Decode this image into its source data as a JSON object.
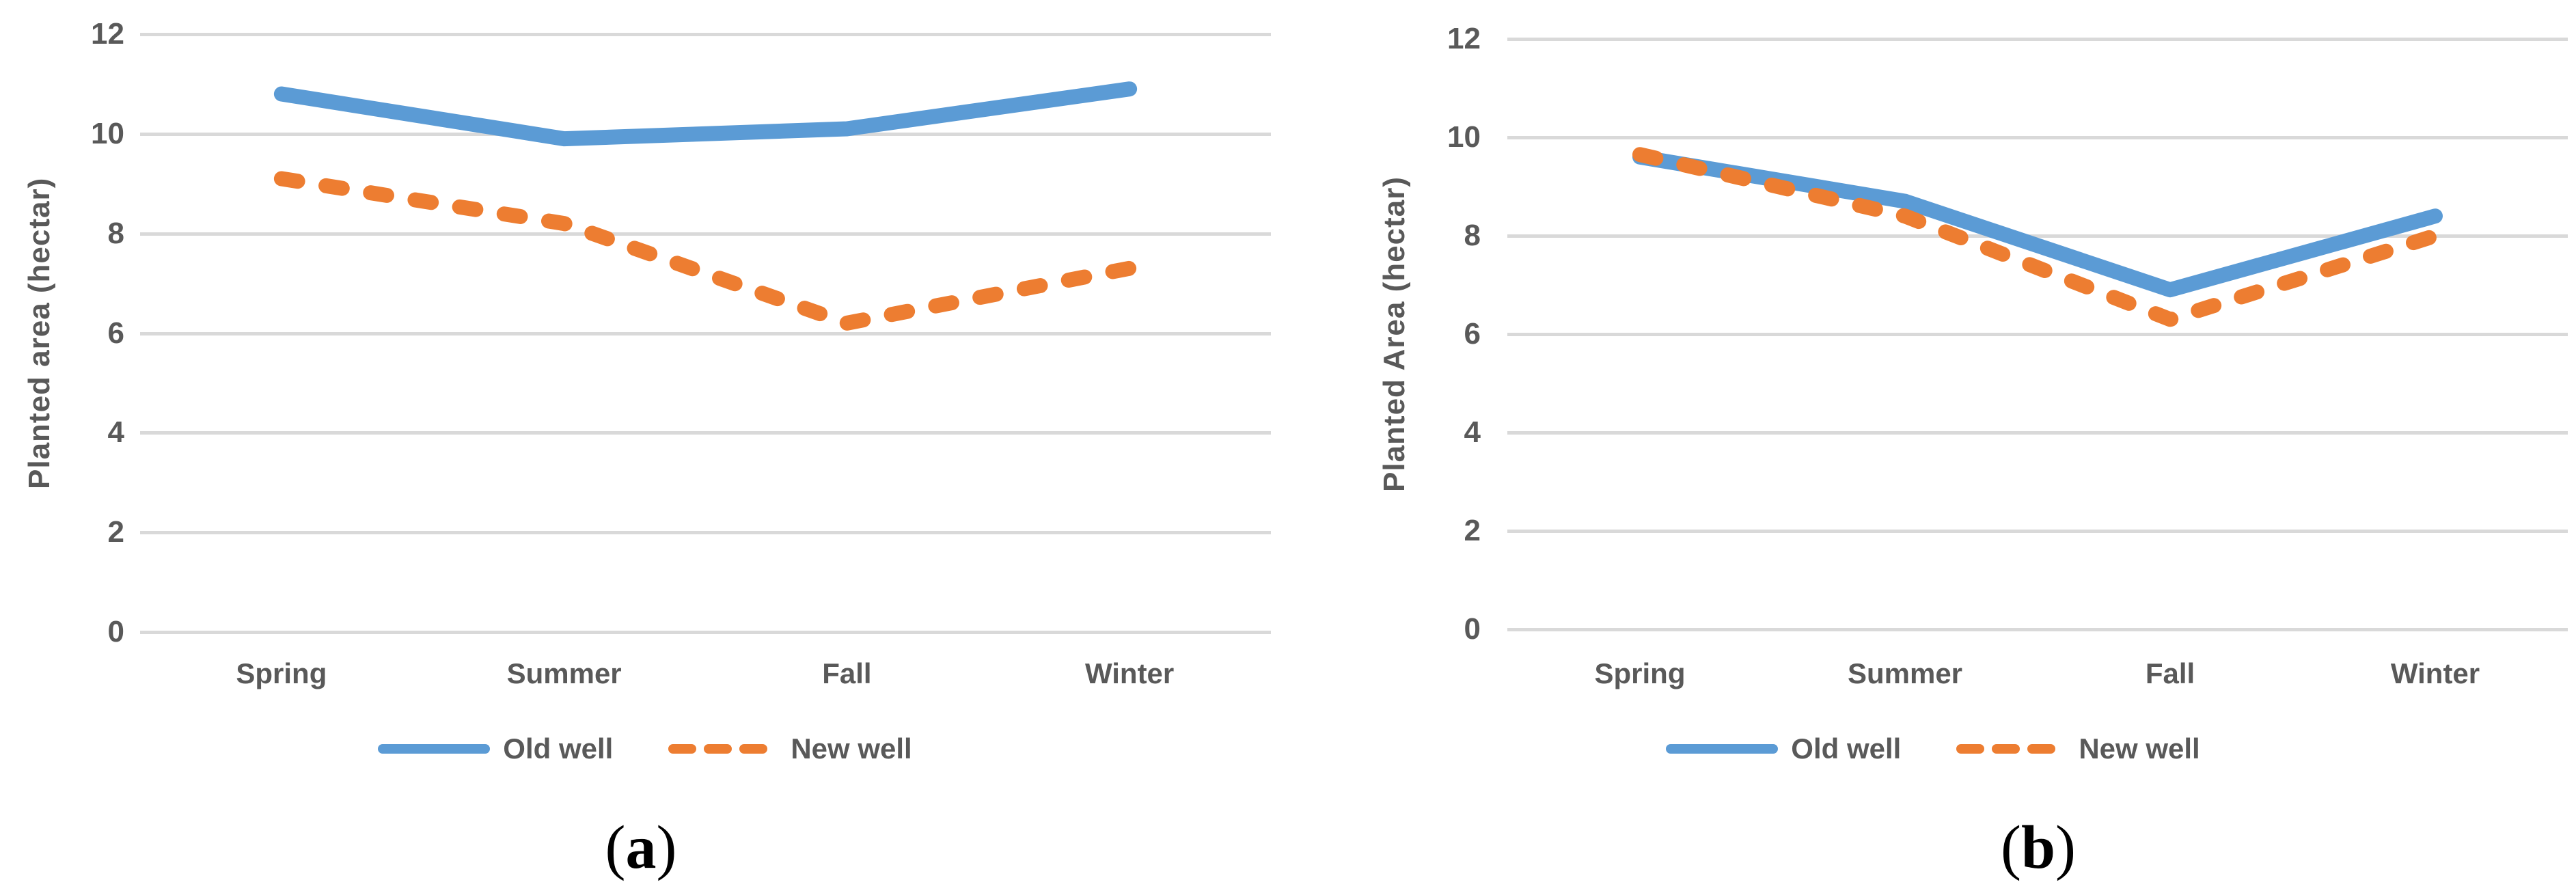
{
  "figure": {
    "background": "#ffffff",
    "description": "Two seasonal line charts comparing planted area for Old well vs New well"
  },
  "colors": {
    "old_well": "#5B9BD5",
    "new_well": "#ED7D31",
    "grid": "#D9D9D9",
    "axis_text": "#595959",
    "caption_text": "#000000"
  },
  "chart_data": [
    {
      "type": "line",
      "title": "",
      "xlabel": "",
      "ylabel": "Planted area (hectar)",
      "caption_open": "(",
      "caption_letter": "a",
      "caption_close": ")",
      "categories": [
        "Spring",
        "Summer",
        "Fall",
        "Winter"
      ],
      "ylim": [
        0,
        12
      ],
      "y_ticks": [
        12,
        10,
        8,
        6,
        4,
        2,
        0
      ],
      "grid": true,
      "legend_position": "bottom",
      "series": [
        {
          "name": "Old well",
          "style": "solid",
          "color_key": "old_well",
          "values": [
            10.8,
            9.9,
            10.1,
            10.9
          ]
        },
        {
          "name": "New well",
          "style": "dashed",
          "color_key": "new_well",
          "values": [
            9.1,
            8.2,
            6.2,
            7.3
          ]
        }
      ]
    },
    {
      "type": "line",
      "title": "",
      "xlabel": "",
      "ylabel": "Planted Area (hectar)",
      "caption_open": "(",
      "caption_letter": "b",
      "caption_close": ")",
      "categories": [
        "Spring",
        "Summer",
        "Fall",
        "Winter"
      ],
      "ylim": [
        0,
        12
      ],
      "y_ticks": [
        12,
        10,
        8,
        6,
        4,
        2,
        0
      ],
      "grid": true,
      "legend_position": "bottom",
      "series": [
        {
          "name": "Old well",
          "style": "solid",
          "color_key": "old_well",
          "values": [
            9.6,
            8.7,
            6.9,
            8.4
          ]
        },
        {
          "name": "New well",
          "style": "dashed",
          "color_key": "new_well",
          "values": [
            9.65,
            8.4,
            6.3,
            8.0
          ]
        }
      ]
    }
  ]
}
